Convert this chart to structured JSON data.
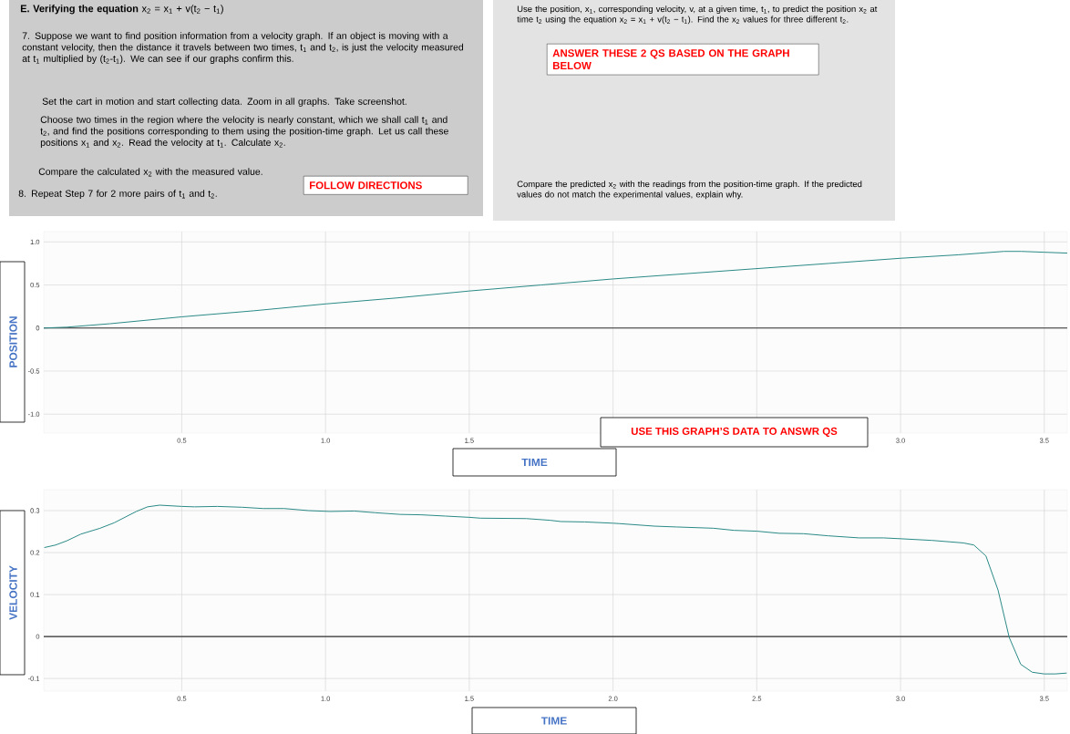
{
  "chart_data": [
    {
      "type": "other",
      "annotations": [
        "**E. Verifying the equation** x$_{2}$ = x$_{1}$ + v(t$_{2}$ − t$_{1}$)",
        "7.  Suppose we want to find position information from a velocity graph.  If an object is moving with a constant velocity, then the distance it travels between two times, t$_{1}$ and t$_{2}$, is just the velocity measured at t$_{1}$ multiplied by (t$_{2}$-t$_{1}$).  We can see if our graphs confirm this.",
        "Set the cart in motion and start collecting data.  Zoom in all graphs.  Take screenshot.",
        "Choose two times in the region where the velocity is nearly constant, which we shall call t$_{1}$ and t$_{2}$, and find the positions corresponding to them using the position-time graph. Let us call these positions x$_{1}$ and x$_{2}$.  Read the velocity at t$_{1}$.  Calculate x$_{2}$.",
        "Compare the calculated x$_{2}$ with the measured value.",
        "8.  Repeat Step 7 for 2 more pairs of t$_{1}$ and t$_{2}$.",
        "FOLLOW DIRECTIONS",
        "Use the position, x$_{1}$, corresponding velocity, v, at a given time, t$_{1}$, to predict the position x$_{2}$ at time t$_{2}$ using the equation x$_{2}$ = x$_{1}$ + v(t$_{2}$ − t$_{1}$).  Find the x$_{2}$ values for three different t$_{2}$.",
        "ANSWER THESE 2 QS BASED ON THE GRAPH BELOW",
        "Compare the predicted x$_{2}$ with the readings from the position-time graph.  If the predicted values do not match the experimental values, explain why."
      ]
    },
    {
      "type": "line",
      "xlabel": "TIME",
      "ylabel": "POSITION",
      "annotations": [
        "USE THIS GRAPH’S DATA TO ANSWR QS"
      ],
      "xlim": [
        0.02,
        3.58
      ],
      "ylim": [
        -1.22,
        1.12
      ],
      "xticks": [
        0.5,
        {
          "value": 1,
          "label": "1.0"
        },
        1.5,
        {
          "value": 2,
          "label": null
        },
        {
          "value": 2.5,
          "label": null
        },
        {
          "value": 3,
          "label": "3.0"
        },
        3.5
      ],
      "yticks": [
        {
          "value": -1,
          "label": "-1.0"
        },
        -0.5,
        0,
        0.5,
        {
          "value": 1,
          "label": "1.0"
        }
      ],
      "grid": true,
      "ref_lines": [
        {
          "axis": "y",
          "value": 0,
          "color": "#333333"
        }
      ],
      "x": [
        0.02,
        0.1,
        0.25,
        0.5,
        0.75,
        1.0,
        1.25,
        1.5,
        1.75,
        2.0,
        2.25,
        2.5,
        2.75,
        3.0,
        3.2,
        3.36,
        3.42,
        3.5,
        3.58
      ],
      "series": [
        {
          "color": "#2a8a87",
          "values": [
            0,
            0.01,
            0.05,
            0.13,
            0.2,
            0.28,
            0.35,
            0.43,
            0.5,
            0.57,
            0.63,
            0.69,
            0.75,
            0.81,
            0.85,
            0.89,
            0.89,
            0.88,
            0.87
          ]
        }
      ]
    },
    {
      "type": "line",
      "xlabel": "TIME",
      "ylabel": "VELOCITY",
      "xlim": [
        0.02,
        3.58
      ],
      "ylim": [
        -0.13,
        0.35
      ],
      "xticks": [
        0.5,
        {
          "value": 1,
          "label": "1.0"
        },
        1.5,
        {
          "value": 2,
          "label": "2.0"
        },
        2.5,
        {
          "value": 3,
          "label": "3.0"
        },
        3.5
      ],
      "yticks": [
        -0.1,
        0,
        0.1,
        0.2,
        0.3
      ],
      "grid": true,
      "ref_lines": [
        {
          "axis": "y",
          "value": 0,
          "color": "#333333"
        }
      ],
      "x": [
        0.022,
        0.061,
        0.1,
        0.149,
        0.216,
        0.265,
        0.342,
        0.381,
        0.423,
        0.5,
        0.545,
        0.624,
        0.71,
        0.783,
        0.856,
        0.941,
        1.015,
        1.1,
        1.173,
        1.259,
        1.332,
        1.417,
        1.5,
        1.539,
        1.698,
        1.78,
        1.818,
        1.902,
        2.0,
        2.023,
        2.144,
        2.222,
        2.349,
        2.421,
        2.5,
        2.578,
        2.663,
        2.748,
        2.856,
        2.941,
        3.0,
        3.11,
        3.219,
        3.255,
        3.297,
        3.339,
        3.378,
        3.418,
        3.458,
        3.499,
        3.539,
        3.578
      ],
      "series": [
        {
          "color": "#2a8a87",
          "values": [
            0.212,
            0.218,
            0.228,
            0.244,
            0.258,
            0.271,
            0.298,
            0.309,
            0.313,
            0.31,
            0.309,
            0.31,
            0.308,
            0.305,
            0.305,
            0.3,
            0.298,
            0.299,
            0.295,
            0.291,
            0.29,
            0.287,
            0.284,
            0.282,
            0.281,
            0.277,
            0.274,
            0.273,
            0.27,
            0.269,
            0.263,
            0.261,
            0.258,
            0.253,
            0.251,
            0.246,
            0.245,
            0.24,
            0.235,
            0.235,
            0.233,
            0.229,
            0.223,
            0.218,
            0.192,
            0.111,
            -0.002,
            -0.066,
            -0.085,
            -0.089,
            -0.089,
            -0.087
          ]
        }
      ]
    }
  ]
}
